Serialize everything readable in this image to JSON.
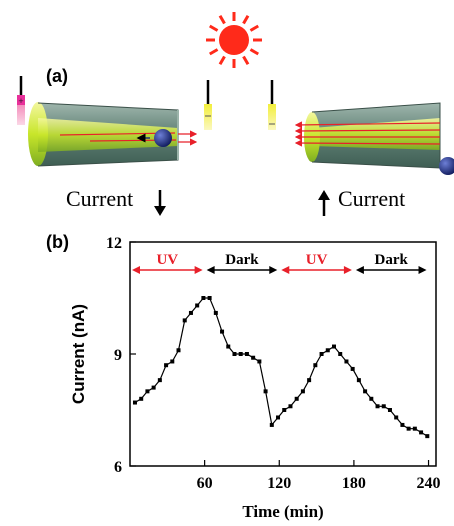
{
  "panel_a": {
    "label": "(a)",
    "left_caption": "Current",
    "right_caption": "Current",
    "left_arrow_direction": "down",
    "right_arrow_direction": "up",
    "colors": {
      "sun": "#ff2a1a",
      "tube": "#6f8f83",
      "channel": "#c8e62a",
      "light_arrow": "#e8202a",
      "particle": "#1e2d7a",
      "electrode_yellow": "#f2ee3a",
      "electrode_pink": "#e8309a"
    }
  },
  "panel_b": {
    "label": "(b)"
  },
  "chart_data": {
    "type": "line",
    "title": "",
    "xlabel": "Time (min)",
    "ylabel": "Current (nA)",
    "xlim": [
      0,
      246
    ],
    "ylim": [
      6,
      12
    ],
    "xticks": [
      60,
      120,
      180,
      240
    ],
    "yticks": [
      6,
      9,
      12
    ],
    "grid": false,
    "marker": "square",
    "line_color": "#000000",
    "phases": [
      {
        "label": "UV",
        "start": 0,
        "end": 60,
        "color": "#e8202a"
      },
      {
        "label": "Dark",
        "start": 60,
        "end": 120,
        "color": "#000000"
      },
      {
        "label": "UV",
        "start": 120,
        "end": 180,
        "color": "#e8202a"
      },
      {
        "label": "Dark",
        "start": 180,
        "end": 240,
        "color": "#000000"
      }
    ],
    "series": [
      {
        "x": [
          4,
          9,
          14,
          19,
          24,
          29,
          34,
          39,
          44,
          49,
          54,
          59,
          64,
          69,
          74,
          79,
          84,
          89,
          94,
          99,
          104,
          109,
          114,
          119,
          124,
          129,
          134,
          139,
          144,
          149,
          154,
          159,
          164,
          169,
          174,
          179,
          184,
          189,
          194,
          199,
          204,
          209,
          214,
          219,
          224,
          229,
          234,
          239
        ],
        "y": [
          7.7,
          7.8,
          8.0,
          8.1,
          8.3,
          8.7,
          8.8,
          9.1,
          9.9,
          10.1,
          10.3,
          10.5,
          10.5,
          10.1,
          9.6,
          9.2,
          9.0,
          9.0,
          9.0,
          8.9,
          8.8,
          8.0,
          7.1,
          7.3,
          7.5,
          7.6,
          7.8,
          8.0,
          8.3,
          8.7,
          9.0,
          9.1,
          9.2,
          9.0,
          8.8,
          8.6,
          8.3,
          8.0,
          7.8,
          7.6,
          7.6,
          7.5,
          7.3,
          7.1,
          7.0,
          7.0,
          6.9,
          6.8
        ]
      }
    ]
  }
}
